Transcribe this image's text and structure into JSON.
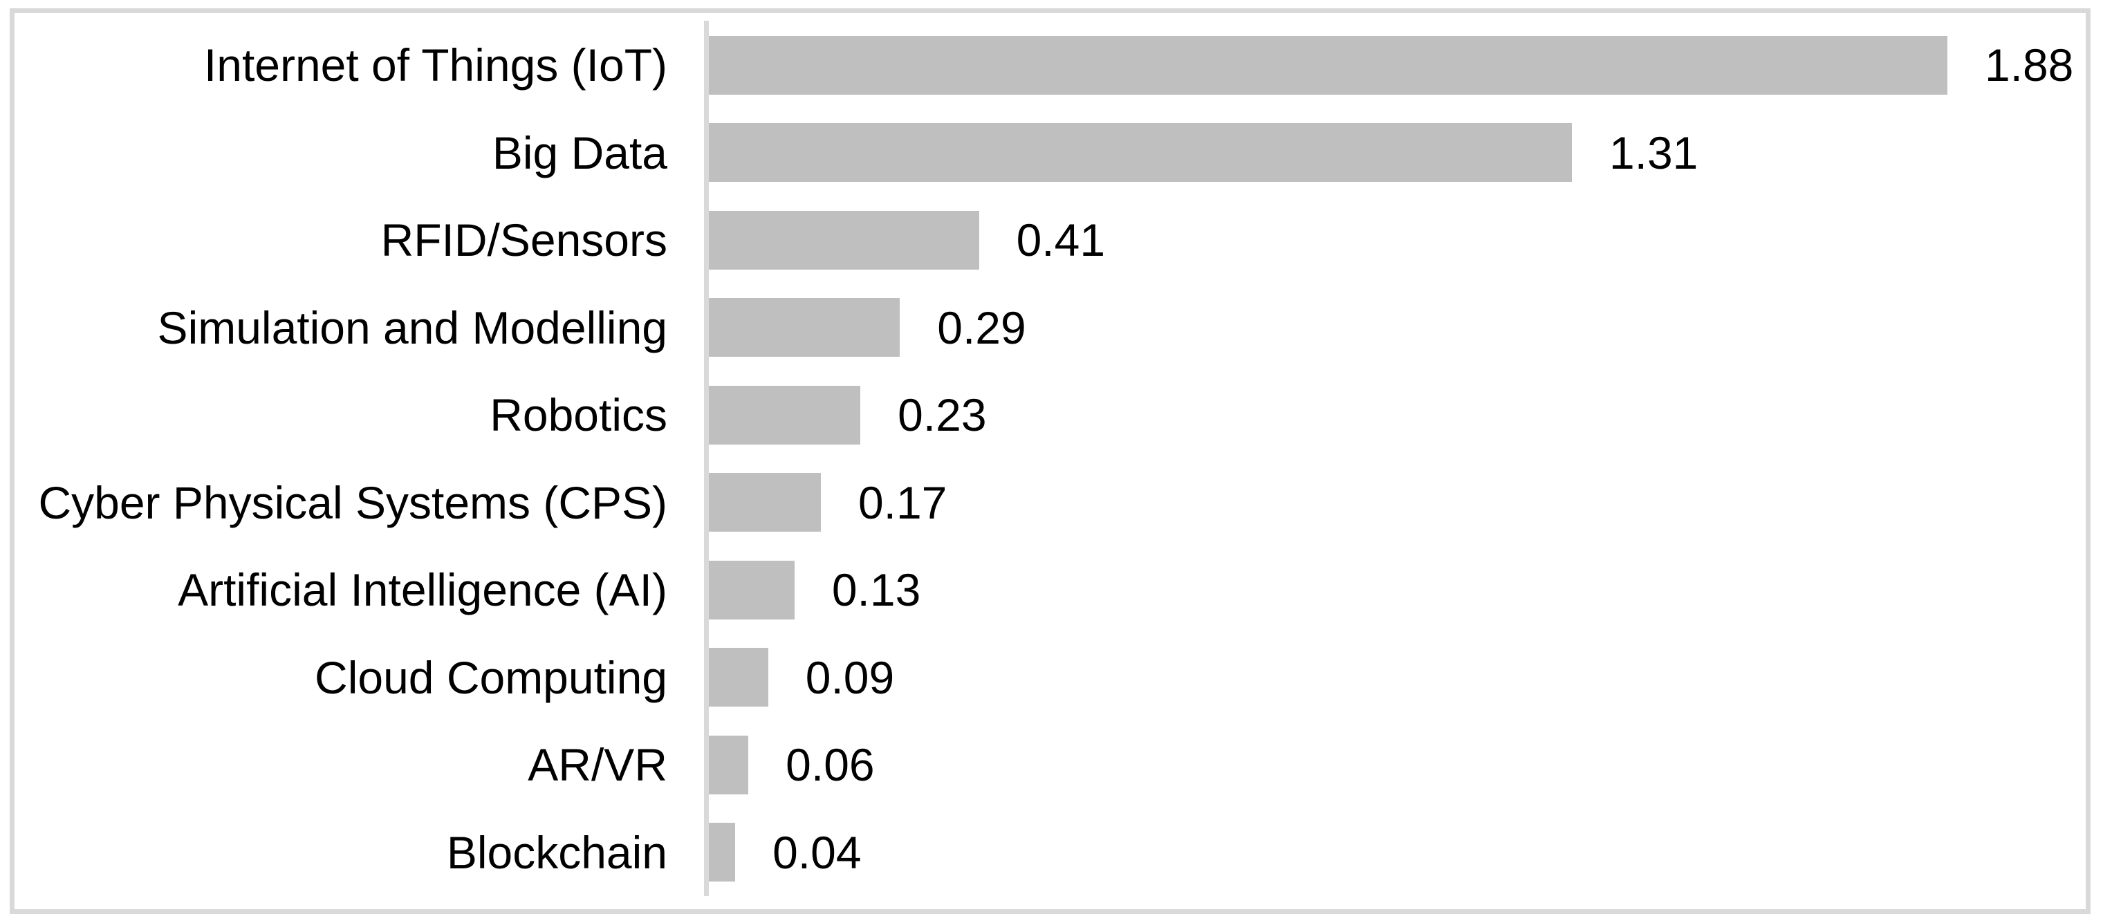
{
  "chart_data": {
    "type": "bar",
    "orientation": "horizontal",
    "title": "",
    "xlabel": "",
    "ylabel": "",
    "categories": [
      "Internet of Things (IoT)",
      "Big Data",
      "RFID/Sensors",
      "Simulation and Modelling",
      "Robotics",
      "Cyber Physical Systems (CPS)",
      "Artificial Intelligence (AI)",
      "Cloud Computing",
      "AR/VR",
      "Blockchain"
    ],
    "values": [
      1.88,
      1.31,
      0.41,
      0.29,
      0.23,
      0.17,
      0.13,
      0.09,
      0.06,
      0.04
    ],
    "value_labels": [
      "1.88",
      "1.31",
      "0.41",
      "0.29",
      "0.23",
      "0.17",
      "0.13",
      "0.09",
      "0.06",
      "0.04"
    ],
    "xlim": [
      0,
      2.09
    ],
    "grid": false,
    "legend": false,
    "colors": {
      "bar": "#BFBFBF",
      "axis_line": "#D9D9D9",
      "border": "#D9D9D9",
      "text": "#000000",
      "background": "#FFFFFF"
    }
  }
}
